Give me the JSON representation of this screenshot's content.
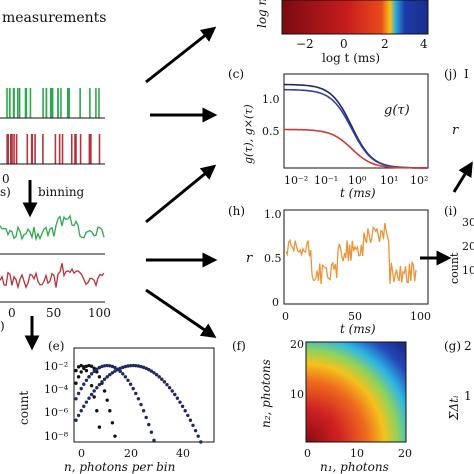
{
  "colors": {
    "green": "#2fa84f",
    "red": "#b5333a",
    "orange": "#e8963a",
    "navy": "#1e2a63",
    "blue": "#3140a8",
    "crimson": "#cf3a3a",
    "black": "#111111"
  },
  "header": {
    "measurements": "measurements"
  },
  "panel_a": {
    "tick_0": "0",
    "label_s": "s)",
    "binning": "binning"
  },
  "panel_binned": {
    "ticks": [
      "0",
      "50",
      "100"
    ],
    "unit": ")"
  },
  "top_heatmap": {
    "y_label": "log n",
    "x_label": "log t (ms)",
    "x_ticks": [
      "−2",
      "0",
      "2",
      "4"
    ]
  },
  "panel_c": {
    "label": "(c)",
    "ylabel": "g(τ), g×(τ)",
    "curve_label": "g(τ)",
    "xlabel": "t (ms)",
    "y_ticks": [
      "0.5",
      "1.0"
    ],
    "x_ticks": [
      "10⁻²",
      "10⁻¹",
      "10⁰",
      "10¹",
      "10²"
    ]
  },
  "panel_h": {
    "label": "(h)",
    "ylabel": "r",
    "xlabel": "t (ms)",
    "y_ticks": [
      "0",
      "0.5",
      "1.0"
    ],
    "x_ticks": [
      "0",
      "50",
      "100"
    ]
  },
  "panel_e": {
    "label": "(e)",
    "ylabel": "count",
    "xlabel": "n, photons per bin",
    "y_ticks": [
      "10⁻²",
      "10⁻⁴",
      "10⁻⁶",
      "10⁻⁸"
    ],
    "x_ticks": [
      "0",
      "20",
      "40"
    ]
  },
  "panel_f": {
    "label": "(f)",
    "ylabel": "n₂, photons",
    "xlabel": "n₁, photons",
    "y_ticks": [
      "10",
      "20"
    ],
    "x_ticks": [
      "0",
      "10",
      "20"
    ]
  },
  "right_column": {
    "j_label": "(j)",
    "j_partial": "I",
    "r_label": "r",
    "i_label": "(i)",
    "i_ylabel": "count",
    "i_ticks": [
      "30",
      "20",
      "10"
    ],
    "g_label": "(g)",
    "g_tick": "2",
    "g_ylabel": "ΣΔtᵢ",
    "g_tick2": "1"
  },
  "chart_data": [
    {
      "type": "line",
      "panel": "c",
      "series": [
        {
          "values_shape": "sigmoid-decay",
          "plateau": 1.3
        },
        {
          "values_shape": "sigmoid-decay",
          "plateau": 1.22
        },
        {
          "values_shape": "sigmoid-decay",
          "plateau": 0.6
        }
      ],
      "xlim": [
        0.01,
        300
      ],
      "ylim": [
        0,
        1.4
      ],
      "xscale": "log"
    },
    {
      "type": "line",
      "panel": "h",
      "x": [
        0,
        100
      ],
      "ylim": [
        0,
        1.0
      ],
      "mean_approx": [
        0.6,
        0.35,
        0.6,
        0.8,
        0.35
      ]
    },
    {
      "type": "scatter",
      "panel": "e",
      "yscale": "log",
      "ylim": [
        1e-08,
        1
      ],
      "xlim": [
        0,
        50
      ],
      "series": [
        {
          "peak": 2,
          "color": "black"
        },
        {
          "peak": 5,
          "color": "black"
        },
        {
          "peak": 12,
          "color": "navy"
        },
        {
          "peak": 22,
          "color": "navy"
        }
      ]
    }
  ]
}
